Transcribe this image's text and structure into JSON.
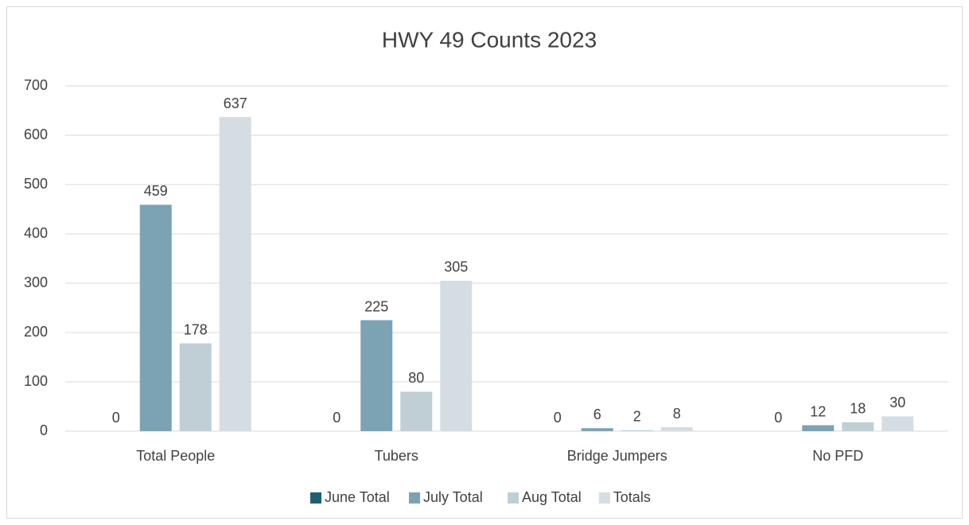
{
  "chart_data": {
    "type": "bar",
    "title": "HWY 49 Counts 2023",
    "categories": [
      "Total People",
      "Tubers",
      "Bridge Jumpers",
      "No PFD"
    ],
    "series": [
      {
        "name": "June Total",
        "color": "#1f5f74",
        "values": [
          0,
          0,
          0,
          0
        ]
      },
      {
        "name": "July Total",
        "color": "#7ba3b3",
        "values": [
          459,
          225,
          6,
          12
        ]
      },
      {
        "name": "Aug Total",
        "color": "#c0cfd6",
        "values": [
          178,
          80,
          2,
          18
        ]
      },
      {
        "name": "Totals",
        "color": "#d5dde3",
        "values": [
          637,
          305,
          8,
          30
        ]
      }
    ],
    "ylim": [
      0,
      700
    ],
    "yticks": [
      0,
      100,
      200,
      300,
      400,
      500,
      600,
      700
    ],
    "grid": true,
    "legend": "bottom"
  }
}
